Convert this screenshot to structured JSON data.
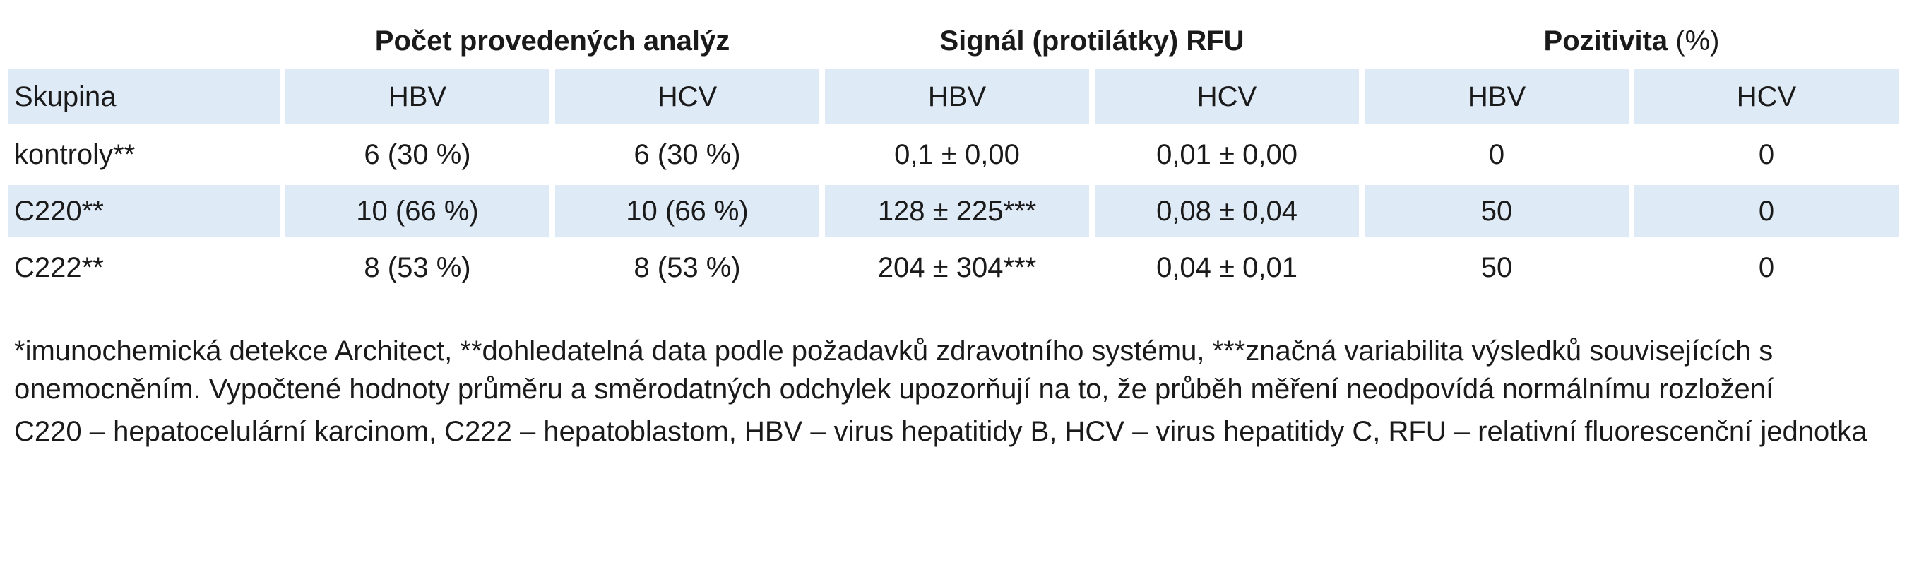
{
  "table": {
    "group_headers": [
      {
        "label": "",
        "span": 1
      },
      {
        "label": "Počet provedených analýz",
        "span": 2
      },
      {
        "label": "Signál (protilátky) RFU",
        "span": 2
      },
      {
        "label": "Pozitivita",
        "unit": "(%)",
        "span": 2
      }
    ],
    "columns": [
      "Skupina",
      "HBV",
      "HCV",
      "HBV",
      "HCV",
      "HBV",
      "HCV"
    ],
    "rows": [
      [
        "kontroly**",
        "6 (30 %)",
        "6 (30 %)",
        "0,1 ± 0,00",
        "0,01 ± 0,00",
        "0",
        "0"
      ],
      [
        "C220**",
        "10 (66 %)",
        "10 (66 %)",
        "128 ± 225***",
        "0,08 ± 0,04",
        "50",
        "0"
      ],
      [
        "C222**",
        "8 (53 %)",
        "8 (53 %)",
        "204 ± 304***",
        "0,04 ± 0,01",
        "50",
        "0"
      ]
    ]
  },
  "notes": {
    "footnote": "*imunochemická detekce Architect, **dohledatelná data podle požadavků zdravotního systému, ***značná variabilita výsledků souvisejících s onemocněním. Vypočtené hodnoty průměru a směrodatných odchylek upozorňují na to, že průběh měření neodpovídá normálnímu rozložení",
    "abbreviations": "C220 – hepatocelulární karcinom, C222 – hepatoblastom, HBV – virus hepatitidy B, HCV – virus hepatitidy C, RFU – relativní fluorescenční jednotka"
  }
}
